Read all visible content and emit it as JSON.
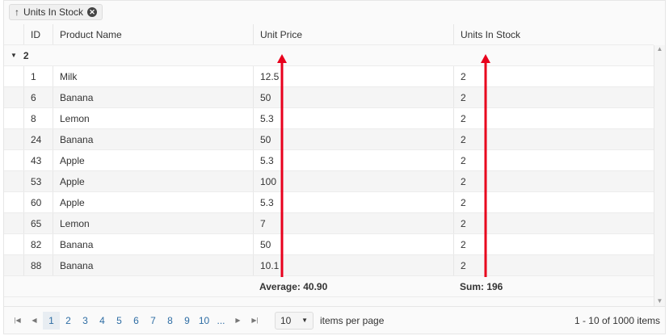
{
  "grouping": {
    "chip_label": "Units In Stock",
    "sort_icon": "arrow-up-icon",
    "remove_icon": "close-circle-icon"
  },
  "columns": [
    "ID",
    "Product Name",
    "Unit Price",
    "Units In Stock"
  ],
  "group": {
    "value": "2"
  },
  "rows": [
    {
      "id": "1",
      "name": "Milk",
      "price": "12.5",
      "stock": "2"
    },
    {
      "id": "6",
      "name": "Banana",
      "price": "50",
      "stock": "2"
    },
    {
      "id": "8",
      "name": "Lemon",
      "price": "5.3",
      "stock": "2"
    },
    {
      "id": "24",
      "name": "Banana",
      "price": "50",
      "stock": "2"
    },
    {
      "id": "43",
      "name": "Apple",
      "price": "5.3",
      "stock": "2"
    },
    {
      "id": "53",
      "name": "Apple",
      "price": "100",
      "stock": "2"
    },
    {
      "id": "60",
      "name": "Apple",
      "price": "5.3",
      "stock": "2"
    },
    {
      "id": "65",
      "name": "Lemon",
      "price": "7",
      "stock": "2"
    },
    {
      "id": "82",
      "name": "Banana",
      "price": "50",
      "stock": "2"
    },
    {
      "id": "88",
      "name": "Banana",
      "price": "10.1",
      "stock": "2"
    }
  ],
  "footer": {
    "price": "Average: 40.90",
    "stock": "Sum: 196"
  },
  "pager": {
    "pages": [
      "1",
      "2",
      "3",
      "4",
      "5",
      "6",
      "7",
      "8",
      "9",
      "10",
      "..."
    ],
    "current": "1",
    "page_size": "10",
    "items_per_page_label": "items per page",
    "info": "1 - 10 of 1000 items"
  },
  "annotation_color": "#e8001c"
}
